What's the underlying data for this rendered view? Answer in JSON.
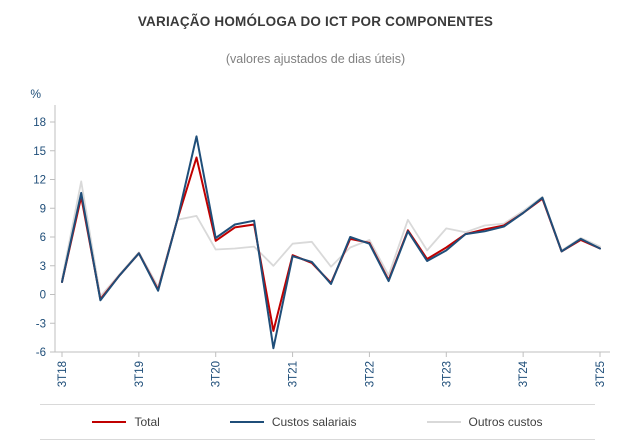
{
  "title": "VARIAÇÃO HOMÓLOGA DO ICT POR COMPONENTES",
  "subtitle": "(valores ajustados de dias úteis)",
  "y_axis_unit": "%",
  "colors": {
    "total": "#C00000",
    "custos_salariais": "#1F4E79",
    "outros_custos": "#D9D9D9",
    "axis_line": "#BFBFBF",
    "tick_text": "#1F4E79",
    "title_text": "#3A3A3A",
    "subtitle_text": "#808080",
    "legend_text": "#404040"
  },
  "chart_data": {
    "type": "line",
    "title": "VARIAÇÃO HOMÓLOGA DO ICT POR COMPONENTES",
    "subtitle": "(valores ajustados de dias úteis)",
    "ylabel": "%",
    "xlabel": "",
    "grid": false,
    "legend_position": "bottom",
    "ylim": [
      -6,
      18
    ],
    "y_ticks": [
      18,
      15,
      12,
      9,
      6,
      3,
      0,
      -3,
      -6
    ],
    "x": [
      "3T18",
      "4T18",
      "1T19",
      "2T19",
      "3T19",
      "4T19",
      "1T20",
      "2T20",
      "3T20",
      "4T20",
      "1T21",
      "2T21",
      "3T21",
      "4T21",
      "1T22",
      "2T22",
      "3T22",
      "4T22",
      "1T23",
      "2T23",
      "3T23",
      "4T23",
      "1T24",
      "2T24",
      "3T24",
      "4T24",
      "1T25",
      "2T25",
      "3T25"
    ],
    "x_tick_labels": [
      "3T18",
      "3T19",
      "3T20",
      "3T21",
      "3T22",
      "3T23",
      "3T24",
      "3T25"
    ],
    "series": [
      {
        "name": "Total",
        "color": "#C00000",
        "values": [
          1.3,
          10.2,
          -0.5,
          2.0,
          4.3,
          0.5,
          7.8,
          14.3,
          5.6,
          7.0,
          7.3,
          -3.8,
          4.1,
          3.3,
          1.2,
          5.8,
          5.4,
          1.5,
          6.7,
          3.7,
          4.9,
          6.3,
          6.8,
          7.2,
          8.5,
          10.0,
          4.5,
          5.7,
          4.8
        ]
      },
      {
        "name": "Custos salariais",
        "color": "#1F4E79",
        "values": [
          1.3,
          10.6,
          -0.6,
          2.0,
          4.3,
          0.4,
          7.8,
          16.5,
          5.9,
          7.3,
          7.7,
          -5.6,
          4.0,
          3.4,
          1.1,
          6.0,
          5.3,
          1.4,
          6.6,
          3.5,
          4.6,
          6.3,
          6.6,
          7.1,
          8.5,
          10.1,
          4.5,
          5.8,
          4.8
        ]
      },
      {
        "name": "Outros custos",
        "color": "#D9D9D9",
        "values": [
          1.6,
          11.8,
          -0.2,
          2.1,
          4.4,
          0.8,
          7.8,
          8.2,
          4.7,
          4.8,
          5.0,
          3.0,
          5.3,
          5.5,
          2.9,
          4.9,
          5.7,
          2.0,
          7.8,
          4.6,
          6.9,
          6.5,
          7.2,
          7.4,
          8.7,
          10.2,
          4.6,
          5.9,
          5.0
        ]
      }
    ]
  }
}
